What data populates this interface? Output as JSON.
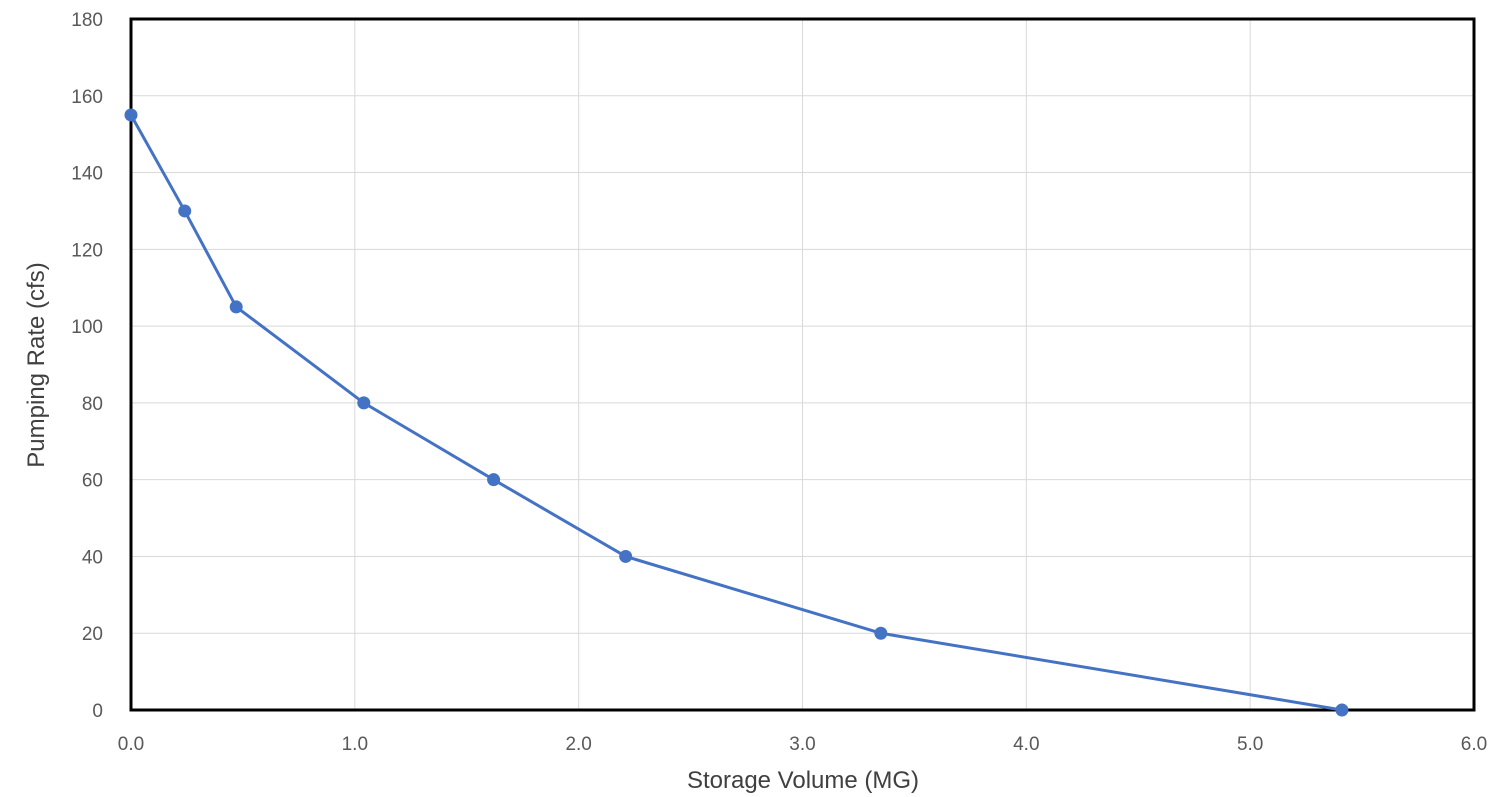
{
  "chart_data": {
    "type": "scatter",
    "title": "",
    "xlabel": "Storage Volume (MG)",
    "ylabel": "Pumping Rate (cfs)",
    "xlim": [
      0,
      6
    ],
    "ylim": [
      0,
      180
    ],
    "x_ticks": [
      "0.0",
      "1.0",
      "2.0",
      "3.0",
      "4.0",
      "5.0",
      "6.0"
    ],
    "y_ticks": [
      "0",
      "20",
      "40",
      "60",
      "80",
      "100",
      "120",
      "140",
      "160",
      "180"
    ],
    "grid": true,
    "legend": "none",
    "series": [
      {
        "color": "#4472c4",
        "marker": "circle",
        "connected": true,
        "points": [
          {
            "x": 0.0,
            "y": 155
          },
          {
            "x": 0.24,
            "y": 130
          },
          {
            "x": 0.47,
            "y": 105
          },
          {
            "x": 1.04,
            "y": 80
          },
          {
            "x": 1.62,
            "y": 60
          },
          {
            "x": 2.21,
            "y": 40
          },
          {
            "x": 3.35,
            "y": 20
          },
          {
            "x": 5.41,
            "y": 0
          }
        ]
      }
    ]
  }
}
